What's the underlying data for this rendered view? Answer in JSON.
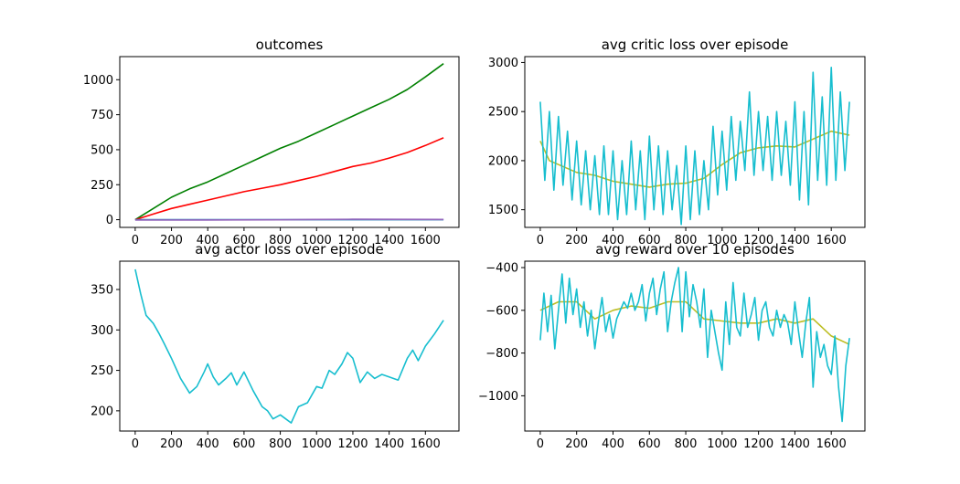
{
  "chart_data": [
    {
      "type": "line",
      "title": "outcomes",
      "xlim": [
        -85,
        1785
      ],
      "ylim": [
        -55,
        1165
      ],
      "xticks": [
        0,
        200,
        400,
        600,
        800,
        1000,
        1200,
        1400,
        1600
      ],
      "yticks": [
        0,
        250,
        500,
        750,
        1000
      ],
      "series": [
        {
          "color": "#008000",
          "x": [
            0,
            100,
            200,
            300,
            400,
            500,
            600,
            700,
            800,
            900,
            1000,
            1100,
            1200,
            1300,
            1400,
            1500,
            1600,
            1700
          ],
          "y": [
            0,
            80,
            160,
            220,
            270,
            330,
            390,
            450,
            510,
            560,
            620,
            680,
            740,
            800,
            860,
            930,
            1020,
            1115
          ]
        },
        {
          "color": "#ff0000",
          "x": [
            0,
            100,
            200,
            300,
            400,
            500,
            600,
            700,
            800,
            900,
            1000,
            1100,
            1200,
            1300,
            1400,
            1500,
            1600,
            1700
          ],
          "y": [
            0,
            40,
            80,
            110,
            140,
            170,
            200,
            225,
            250,
            280,
            310,
            345,
            380,
            405,
            440,
            480,
            530,
            585
          ]
        },
        {
          "color": "#1f77b4",
          "x": [
            0,
            1700
          ],
          "y": [
            0,
            0
          ]
        },
        {
          "color": "#9467bd",
          "x": [
            0,
            400,
            800,
            1000,
            1200,
            1700
          ],
          "y": [
            -3,
            -2,
            -1,
            2,
            3,
            2
          ]
        }
      ]
    },
    {
      "type": "line",
      "title": "avg critic loss over episode",
      "xlim": [
        -85,
        1785
      ],
      "ylim": [
        1320,
        3060
      ],
      "xticks": [
        0,
        200,
        400,
        600,
        800,
        1000,
        1200,
        1400,
        1600
      ],
      "yticks": [
        1500,
        2000,
        2500,
        3000
      ],
      "series": [
        {
          "color": "#bcbd22",
          "x": [
            0,
            50,
            100,
            200,
            300,
            400,
            500,
            600,
            700,
            800,
            900,
            1000,
            1100,
            1200,
            1300,
            1400,
            1500,
            1600,
            1700
          ],
          "y": [
            2200,
            2000,
            1960,
            1880,
            1850,
            1790,
            1760,
            1730,
            1760,
            1770,
            1820,
            1960,
            2080,
            2130,
            2150,
            2140,
            2220,
            2300,
            2260
          ]
        },
        {
          "color": "#17becf",
          "x": [
            0,
            25,
            50,
            75,
            100,
            125,
            150,
            175,
            200,
            225,
            250,
            275,
            300,
            325,
            350,
            375,
            400,
            425,
            450,
            475,
            500,
            525,
            550,
            575,
            600,
            625,
            650,
            675,
            700,
            725,
            750,
            775,
            800,
            825,
            850,
            875,
            900,
            925,
            950,
            975,
            1000,
            1025,
            1050,
            1075,
            1100,
            1125,
            1150,
            1175,
            1200,
            1225,
            1250,
            1275,
            1300,
            1325,
            1350,
            1375,
            1400,
            1425,
            1450,
            1475,
            1500,
            1525,
            1550,
            1575,
            1600,
            1625,
            1650,
            1675,
            1700
          ],
          "y": [
            2600,
            1800,
            2500,
            1700,
            2450,
            1750,
            2300,
            1600,
            2200,
            1550,
            2100,
            1500,
            2050,
            1450,
            2150,
            1450,
            2100,
            1400,
            2000,
            1450,
            2200,
            1500,
            2100,
            1400,
            2250,
            1500,
            2150,
            1450,
            2100,
            1500,
            1950,
            1350,
            2150,
            1400,
            2100,
            1450,
            2000,
            1500,
            2350,
            1650,
            2300,
            1700,
            2450,
            1800,
            2400,
            1900,
            2700,
            1850,
            2500,
            1900,
            2450,
            1800,
            2500,
            1850,
            2400,
            1750,
            2600,
            1600,
            2500,
            1550,
            2900,
            1800,
            2650,
            1750,
            2950,
            1800,
            2700,
            1900,
            2600
          ]
        }
      ]
    },
    {
      "type": "line",
      "title": "avg actor loss over episode",
      "xlim": [
        -85,
        1785
      ],
      "ylim": [
        175,
        385
      ],
      "xticks": [
        0,
        200,
        400,
        600,
        800,
        1000,
        1200,
        1400,
        1600
      ],
      "yticks": [
        200,
        250,
        300,
        350
      ],
      "series": [
        {
          "color": "#17becf",
          "x": [
            0,
            30,
            60,
            100,
            130,
            160,
            200,
            250,
            300,
            340,
            380,
            400,
            430,
            460,
            500,
            530,
            560,
            600,
            650,
            700,
            730,
            760,
            800,
            830,
            860,
            900,
            950,
            1000,
            1030,
            1070,
            1100,
            1140,
            1170,
            1200,
            1240,
            1280,
            1320,
            1360,
            1400,
            1450,
            1500,
            1530,
            1560,
            1600,
            1650,
            1700
          ],
          "y": [
            375,
            345,
            318,
            308,
            296,
            283,
            265,
            240,
            222,
            230,
            248,
            258,
            242,
            232,
            240,
            247,
            232,
            248,
            225,
            205,
            200,
            190,
            195,
            190,
            185,
            205,
            210,
            230,
            228,
            250,
            245,
            258,
            272,
            265,
            235,
            248,
            240,
            245,
            242,
            238,
            265,
            275,
            262,
            280,
            295,
            312
          ]
        }
      ]
    },
    {
      "type": "line",
      "title": "avg reward over 10 episodes",
      "xlim": [
        -85,
        1785
      ],
      "ylim": [
        -1165,
        -370
      ],
      "xticks": [
        0,
        200,
        400,
        600,
        800,
        1000,
        1200,
        1400,
        1600
      ],
      "yticks": [
        -400,
        -600,
        -800,
        -1000
      ],
      "series": [
        {
          "color": "#bcbd22",
          "x": [
            0,
            100,
            200,
            300,
            400,
            500,
            600,
            700,
            800,
            900,
            1000,
            1100,
            1200,
            1300,
            1400,
            1500,
            1600,
            1700
          ],
          "y": [
            -600,
            -560,
            -560,
            -640,
            -600,
            -580,
            -590,
            -560,
            -560,
            -640,
            -650,
            -660,
            -660,
            -640,
            -660,
            -640,
            -720,
            -760
          ]
        },
        {
          "color": "#17becf",
          "x": [
            0,
            20,
            40,
            60,
            80,
            100,
            120,
            140,
            160,
            180,
            200,
            220,
            240,
            260,
            280,
            300,
            320,
            340,
            360,
            380,
            400,
            420,
            440,
            460,
            480,
            500,
            520,
            540,
            560,
            580,
            600,
            620,
            640,
            660,
            680,
            700,
            720,
            740,
            760,
            780,
            800,
            820,
            840,
            860,
            880,
            900,
            920,
            940,
            960,
            980,
            1000,
            1020,
            1040,
            1060,
            1080,
            1100,
            1120,
            1140,
            1160,
            1180,
            1200,
            1220,
            1240,
            1260,
            1280,
            1300,
            1320,
            1340,
            1360,
            1380,
            1400,
            1420,
            1440,
            1460,
            1480,
            1500,
            1520,
            1540,
            1560,
            1580,
            1600,
            1620,
            1640,
            1660,
            1680,
            1700
          ],
          "y": [
            -740,
            -520,
            -700,
            -530,
            -780,
            -600,
            -430,
            -660,
            -450,
            -620,
            -500,
            -680,
            -560,
            -720,
            -600,
            -780,
            -650,
            -540,
            -700,
            -620,
            -730,
            -640,
            -600,
            -560,
            -590,
            -520,
            -600,
            -560,
            -480,
            -650,
            -520,
            -450,
            -620,
            -500,
            -420,
            -700,
            -560,
            -470,
            -400,
            -700,
            -420,
            -630,
            -480,
            -560,
            -680,
            -500,
            -820,
            -600,
            -700,
            -800,
            -880,
            -560,
            -760,
            -470,
            -680,
            -720,
            -520,
            -680,
            -620,
            -540,
            -740,
            -600,
            -560,
            -680,
            -720,
            -600,
            -680,
            -620,
            -660,
            -760,
            -560,
            -700,
            -820,
            -660,
            -540,
            -960,
            -700,
            -820,
            -760,
            -860,
            -900,
            -720,
            -960,
            -1120,
            -860,
            -730
          ]
        }
      ]
    }
  ]
}
